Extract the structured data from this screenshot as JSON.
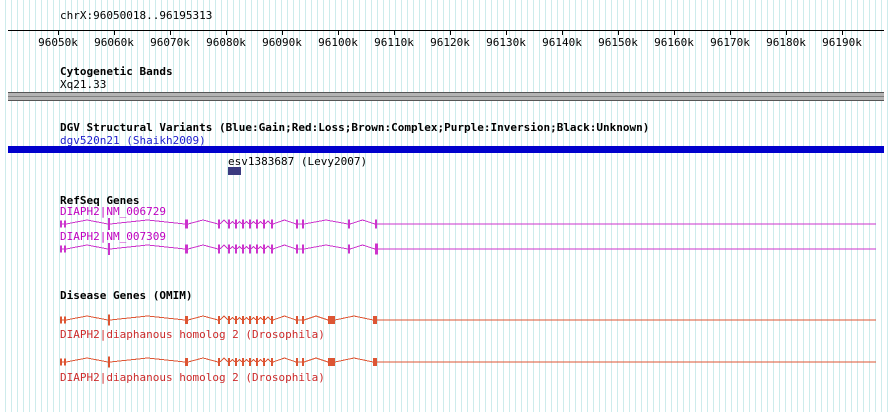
{
  "header": {
    "region": "chrX:96050018..96195313"
  },
  "ruler": {
    "labels": [
      "96050k",
      "96060k",
      "96070k",
      "96080k",
      "96090k",
      "96100k",
      "96110k",
      "96120k",
      "96130k",
      "96140k",
      "96150k",
      "96160k",
      "96170k",
      "96180k",
      "96190k"
    ]
  },
  "colors": {
    "grid_line": "#cdecec",
    "ruler_line": "#000000",
    "cytoband_bar": "#b4b4b4",
    "dgv_bar": "#0000cc",
    "dgv_feature_box": "#3a3a80",
    "dgv_label_text": "#2222cc",
    "refseq_gene": "#cc33cc",
    "omim_gene": "#dd5533"
  },
  "tracks": {
    "cytobands": {
      "title": "Cytogenetic Bands",
      "band_label": "Xq21.33"
    },
    "dgv": {
      "title": "DGV Structural Variants (Blue:Gain;Red:Loss;Brown:Complex;Purple:Inversion;Black:Unknown)",
      "variant_label": "dgv520n21 (Shaikh2009)",
      "feature_label": "esv1383687 (Levy2007)"
    },
    "refseq": {
      "title": "RefSeq Genes",
      "genes": [
        {
          "label": "DIAPH2|NM_006729",
          "color": "#cc33cc",
          "tail": 876,
          "exons": [
            [
              60,
              2,
              7
            ],
            [
              64,
              2,
              7
            ],
            [
              108,
              2,
              12
            ],
            [
              185,
              3,
              9
            ],
            [
              218,
              2,
              9
            ],
            [
              228,
              2,
              9
            ],
            [
              235,
              2,
              9
            ],
            [
              242,
              2,
              9
            ],
            [
              249,
              2,
              9
            ],
            [
              256,
              2,
              9
            ],
            [
              263,
              2,
              9
            ],
            [
              271,
              2,
              9
            ],
            [
              296,
              2,
              9
            ],
            [
              302,
              2,
              9
            ],
            [
              348,
              2,
              9
            ],
            [
              375,
              2,
              9
            ]
          ]
        },
        {
          "label": "DIAPH2|NM_007309",
          "color": "#cc33cc",
          "tail": 876,
          "exons": [
            [
              60,
              2,
              7
            ],
            [
              64,
              2,
              7
            ],
            [
              108,
              2,
              12
            ],
            [
              185,
              3,
              9
            ],
            [
              218,
              2,
              9
            ],
            [
              228,
              2,
              9
            ],
            [
              235,
              2,
              9
            ],
            [
              242,
              2,
              9
            ],
            [
              249,
              2,
              9
            ],
            [
              256,
              2,
              9
            ],
            [
              263,
              2,
              9
            ],
            [
              271,
              2,
              9
            ],
            [
              296,
              2,
              9
            ],
            [
              302,
              2,
              9
            ],
            [
              348,
              2,
              9
            ],
            [
              375,
              3,
              11
            ]
          ]
        }
      ]
    },
    "omim": {
      "title": "Disease Genes (OMIM)",
      "genes": [
        {
          "label": "DIAPH2|diaphanous homolog 2 (Drosophila)",
          "color": "#dd5533",
          "tail": 876,
          "exons": [
            [
              60,
              2,
              7
            ],
            [
              64,
              2,
              7
            ],
            [
              108,
              2,
              11
            ],
            [
              185,
              3,
              8
            ],
            [
              218,
              2,
              8
            ],
            [
              228,
              2,
              8
            ],
            [
              235,
              2,
              8
            ],
            [
              242,
              2,
              8
            ],
            [
              249,
              2,
              8
            ],
            [
              256,
              2,
              8
            ],
            [
              263,
              2,
              8
            ],
            [
              271,
              2,
              8
            ],
            [
              296,
              2,
              8
            ],
            [
              302,
              2,
              8
            ],
            [
              328,
              7,
              8
            ],
            [
              373,
              4,
              8
            ]
          ]
        },
        {
          "label": "DIAPH2|diaphanous homolog 2 (Drosophila)",
          "color": "#dd5533",
          "tail": 876,
          "exons": [
            [
              60,
              2,
              7
            ],
            [
              64,
              2,
              7
            ],
            [
              108,
              2,
              11
            ],
            [
              185,
              3,
              8
            ],
            [
              218,
              2,
              8
            ],
            [
              228,
              2,
              8
            ],
            [
              235,
              2,
              8
            ],
            [
              242,
              2,
              8
            ],
            [
              249,
              2,
              8
            ],
            [
              256,
              2,
              8
            ],
            [
              263,
              2,
              8
            ],
            [
              271,
              2,
              8
            ],
            [
              296,
              2,
              8
            ],
            [
              302,
              2,
              8
            ],
            [
              328,
              7,
              8
            ],
            [
              373,
              4,
              8
            ]
          ]
        }
      ]
    }
  }
}
